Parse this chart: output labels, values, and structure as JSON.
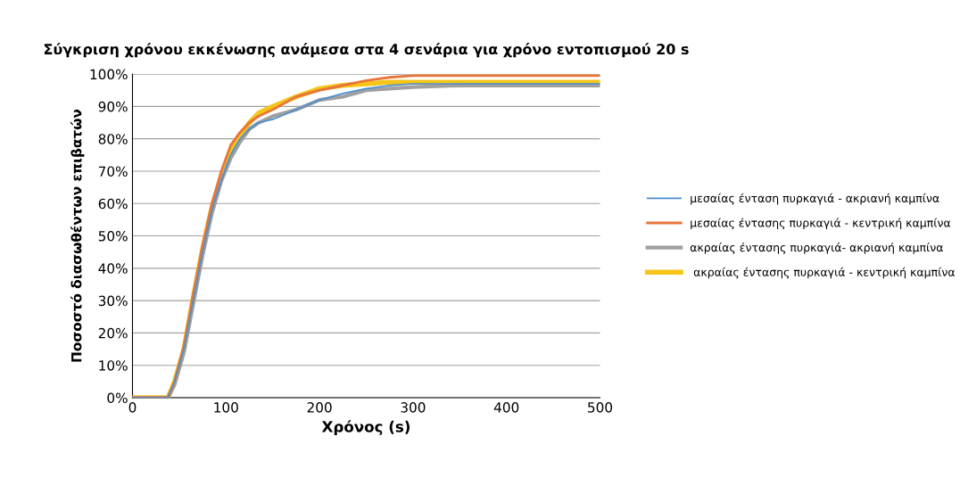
{
  "chart_data": {
    "type": "line",
    "title": "Σύγκριση χρόνου εκκένωσης ανάμεσα στα 4 σενάρια για χρόνο εντοπισμού 20 s",
    "xlabel": "Χρόνος (s)",
    "ylabel": "Ποσοστό διασωθέντων επιβατών",
    "xlim": [
      0,
      500
    ],
    "xticks": [
      0,
      100,
      200,
      300,
      400,
      500
    ],
    "ylim": [
      0,
      100
    ],
    "yticks": [
      {
        "value": 0,
        "label": "0%"
      },
      {
        "value": 10,
        "label": "10%"
      },
      {
        "value": 20,
        "label": "20%"
      },
      {
        "value": 30,
        "label": "30%"
      },
      {
        "value": 40,
        "label": "40%"
      },
      {
        "value": 50,
        "label": "50%"
      },
      {
        "value": 60,
        "label": "60%"
      },
      {
        "value": 70,
        "label": "70%"
      },
      {
        "value": 80,
        "label": "80%"
      },
      {
        "value": 90,
        "label": "90%"
      },
      {
        "value": 100,
        "label": "100%"
      }
    ],
    "grid": "y",
    "legend": "right",
    "marker": "none",
    "line_style": "solid",
    "x": [
      0,
      38,
      45,
      55,
      65,
      75,
      85,
      95,
      105,
      115,
      125,
      135,
      150,
      175,
      200,
      225,
      250,
      275,
      300,
      350,
      400,
      500
    ],
    "series": [
      {
        "name": "μεσαίας ένταση πυρκαγιά - ακριανή καμπίνα",
        "color": "#4a8fd0",
        "values": [
          0,
          0,
          5,
          15,
          30,
          45,
          58,
          67,
          75,
          80,
          83,
          85,
          86,
          89,
          92,
          94,
          95.5,
          96.5,
          97,
          97,
          97,
          97
        ]
      },
      {
        "name": "μεσαίας έντασης πυρκαγιά - κεντρική καμπίνα",
        "color": "#e8763a",
        "values": [
          0,
          0,
          5,
          16,
          32,
          47,
          60,
          70,
          78,
          82,
          85,
          87,
          89,
          93,
          95,
          96.5,
          98,
          99,
          99.5,
          99.5,
          99.5,
          99.5
        ]
      },
      {
        "name": "ακραίας έντασης πυρκαγιά- ακριανή καμπίνα",
        "color": "#a0a0a0",
        "values": [
          0,
          0,
          4,
          14,
          29,
          44,
          57,
          67,
          74,
          79,
          83,
          85,
          87,
          89,
          92,
          93,
          95,
          95.5,
          96,
          96.5,
          96.5,
          96.5
        ]
      },
      {
        "name": " ακραίας έντασης πυρκαγιά - κεντρική καμπίνα",
        "color": "#f5c518",
        "values": [
          0,
          0,
          5,
          15,
          31,
          46,
          59,
          68,
          76,
          81,
          85,
          88,
          90,
          93,
          95.5,
          96.5,
          97,
          97.5,
          97.5,
          97.5,
          97.5,
          97.5
        ]
      }
    ]
  }
}
